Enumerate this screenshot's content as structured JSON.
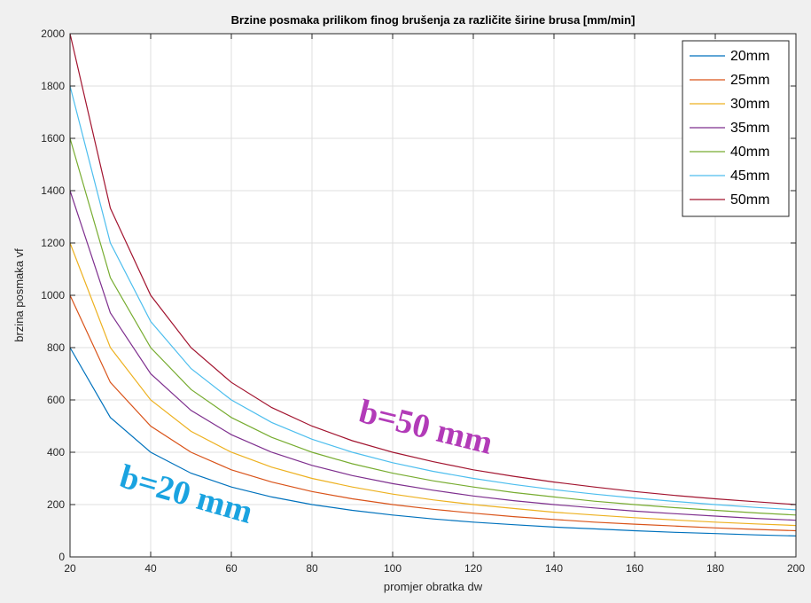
{
  "chart_data": {
    "type": "line",
    "title": "Brzine posmaka prilikom finog brušenja za različite širine brusa [mm/min]",
    "xlabel": "promjer obratka dw",
    "ylabel": "brzina posmaka vf",
    "xlim": [
      20,
      200
    ],
    "ylim": [
      0,
      2000
    ],
    "xticks": [
      20,
      40,
      60,
      80,
      100,
      120,
      140,
      160,
      180,
      200
    ],
    "yticks": [
      0,
      200,
      400,
      600,
      800,
      1000,
      1200,
      1400,
      1600,
      1800,
      2000
    ],
    "grid": true,
    "legend_position": "top-right",
    "x": [
      20,
      30,
      40,
      50,
      60,
      70,
      80,
      90,
      100,
      110,
      120,
      130,
      140,
      150,
      160,
      170,
      180,
      190,
      200
    ],
    "series": [
      {
        "name": "20mm",
        "color": "#0072BD",
        "values": [
          800,
          533,
          400,
          320,
          267,
          229,
          200,
          178,
          160,
          145,
          133,
          123,
          114,
          107,
          100,
          94,
          89,
          84,
          80
        ]
      },
      {
        "name": "25mm",
        "color": "#D95319",
        "values": [
          1000,
          667,
          500,
          400,
          333,
          286,
          250,
          222,
          200,
          182,
          167,
          154,
          143,
          133,
          125,
          118,
          111,
          105,
          100
        ]
      },
      {
        "name": "30mm",
        "color": "#EDB120",
        "values": [
          1200,
          800,
          600,
          480,
          400,
          343,
          300,
          267,
          240,
          218,
          200,
          185,
          171,
          160,
          150,
          141,
          133,
          126,
          120
        ]
      },
      {
        "name": "35mm",
        "color": "#7E2F8E",
        "values": [
          1400,
          933,
          700,
          560,
          467,
          400,
          350,
          311,
          280,
          255,
          233,
          215,
          200,
          187,
          175,
          165,
          156,
          147,
          140
        ]
      },
      {
        "name": "40mm",
        "color": "#77AC30",
        "values": [
          1600,
          1067,
          800,
          640,
          533,
          457,
          400,
          356,
          320,
          291,
          267,
          246,
          229,
          213,
          200,
          188,
          178,
          168,
          160
        ]
      },
      {
        "name": "45mm",
        "color": "#4DBEEE",
        "values": [
          1800,
          1200,
          900,
          720,
          600,
          514,
          450,
          400,
          360,
          327,
          300,
          277,
          257,
          240,
          225,
          212,
          200,
          189,
          180
        ]
      },
      {
        "name": "50mm",
        "color": "#A2142F",
        "values": [
          2000,
          1333,
          1000,
          800,
          667,
          571,
          500,
          444,
          400,
          364,
          333,
          308,
          286,
          267,
          250,
          235,
          222,
          211,
          200
        ]
      }
    ],
    "annotations": [
      {
        "text": "b=50 mm",
        "color": "#B23BB8"
      },
      {
        "text": "b=20 mm",
        "color": "#1AA3E0"
      }
    ]
  }
}
